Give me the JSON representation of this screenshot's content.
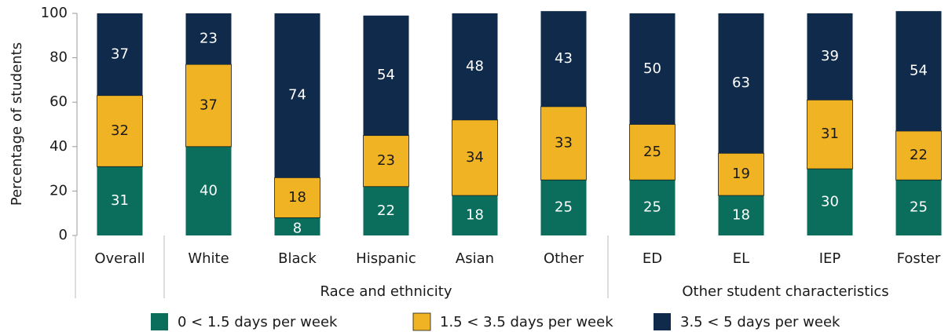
{
  "chart_data": {
    "type": "stacked_bar",
    "ylabel": "Percentage of students",
    "groups": [
      {
        "categories": [
          "Overall"
        ]
      },
      {
        "label": "Race and ethnicity",
        "categories": [
          "White",
          "Black",
          "Hispanic",
          "Asian",
          "Other"
        ]
      },
      {
        "label": "Other student characteristics",
        "categories": [
          "ED",
          "EL",
          "IEP",
          "Foster"
        ]
      }
    ],
    "series": [
      {
        "name": "0 < 1.5 days per week",
        "color": "#0b6e5c",
        "text_color": "#ffffff",
        "values": [
          31,
          40,
          8,
          22,
          18,
          25,
          25,
          18,
          30,
          25
        ]
      },
      {
        "name": "1.5 < 3.5 days per week",
        "color": "#f0b323",
        "text_color": "#1a1a1a",
        "values": [
          32,
          37,
          18,
          23,
          34,
          33,
          25,
          19,
          31,
          22
        ]
      },
      {
        "name": "3.5 < 5 days per week",
        "color": "#0f2a4a",
        "text_color": "#ffffff",
        "values": [
          37,
          23,
          74,
          54,
          48,
          43,
          50,
          63,
          39,
          54
        ]
      }
    ],
    "ylim": [
      0,
      100
    ],
    "yticks": [
      0,
      20,
      40,
      60,
      80,
      100
    ],
    "legend": "bottom"
  }
}
